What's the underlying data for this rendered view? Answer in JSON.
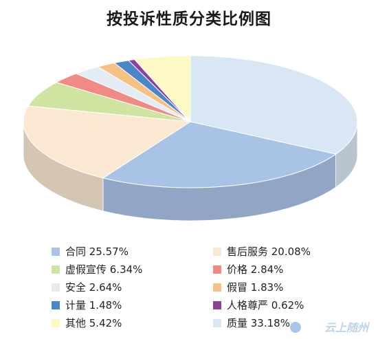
{
  "chart_data": {
    "type": "pie",
    "title": "按投诉性质分类比例图",
    "slices": [
      {
        "label": "质量",
        "value": 33.18,
        "display": "质量 33.18%",
        "color": "#d9e7f5"
      },
      {
        "label": "合同",
        "value": 25.57,
        "display": "合同 25.57%",
        "color": "#a9c3e6"
      },
      {
        "label": "售后服务",
        "value": 20.08,
        "display": "售后服务 20.08%",
        "color": "#fbe8d3"
      },
      {
        "label": "虚假宣传",
        "value": 6.34,
        "display": "虚假宣传 6.34%",
        "color": "#cfe4a1"
      },
      {
        "label": "价格",
        "value": 2.84,
        "display": "价格 2.84%",
        "color": "#f08a84"
      },
      {
        "label": "安全",
        "value": 2.64,
        "display": "安全 2.64%",
        "color": "#e3ecf3"
      },
      {
        "label": "假冒",
        "value": 1.83,
        "display": "假冒 1.83%",
        "color": "#f5c184"
      },
      {
        "label": "计量",
        "value": 1.48,
        "display": "计量 1.48%",
        "color": "#4a86c8"
      },
      {
        "label": "人格尊严",
        "value": 0.62,
        "display": "人格尊严 0.62%",
        "color": "#8e3f9c"
      },
      {
        "label": "其他",
        "value": 5.42,
        "display": "其他 5.42%",
        "color": "#fdf9c4"
      }
    ],
    "legend_order": [
      "合同",
      "售后服务",
      "虚假宣传",
      "价格",
      "安全",
      "假冒",
      "计量",
      "人格尊严",
      "其他",
      "质量"
    ]
  },
  "watermark": "云上随州"
}
